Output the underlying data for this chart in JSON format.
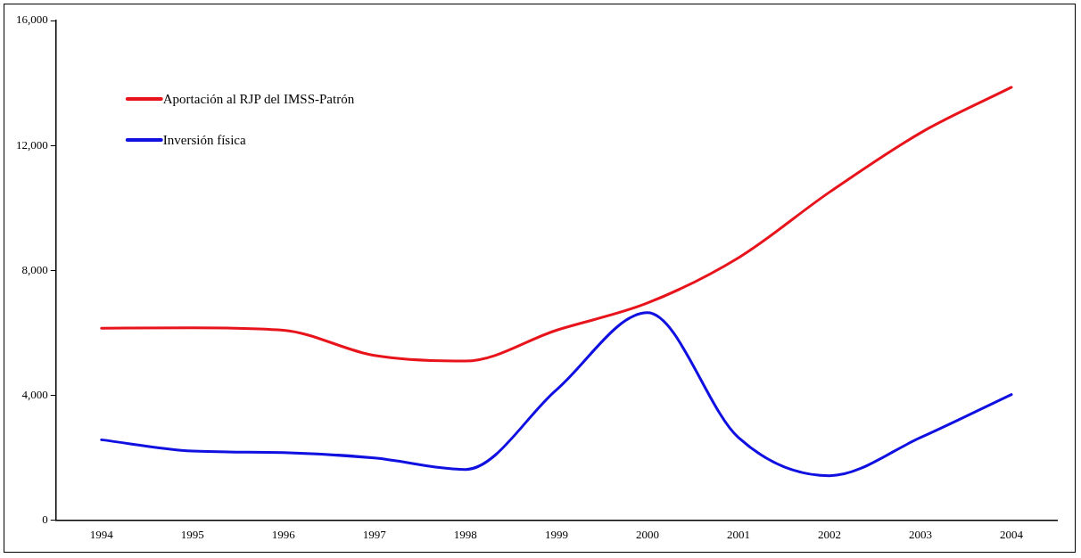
{
  "chart_data": {
    "type": "line",
    "categories": [
      "1994",
      "1995",
      "1996",
      "1997",
      "1998",
      "1999",
      "2000",
      "2001",
      "2002",
      "2003",
      "2004"
    ],
    "series": [
      {
        "name": "Aportación al RJP del IMSS-Patrón",
        "color": "#e8141c",
        "values": [
          6140,
          6160,
          6080,
          5270,
          5090,
          6080,
          6950,
          8400,
          10500,
          12400,
          13860
        ]
      },
      {
        "name": "Inversión física",
        "color": "#1010e0",
        "values": [
          2570,
          2210,
          2160,
          1990,
          1620,
          4170,
          6640,
          2640,
          1420,
          2640,
          4020
        ]
      }
    ],
    "ylim": [
      0,
      16000
    ],
    "yticks": [
      0,
      {
        "value": 4000,
        "label": "4,000"
      },
      {
        "value": 8000,
        "label": "8,000"
      },
      {
        "value": 12000,
        "label": "12,000"
      },
      {
        "value": 16000,
        "label": "16,000"
      }
    ],
    "grid": false,
    "legend": "top left",
    "marker": "none",
    "line_style": "solid"
  }
}
